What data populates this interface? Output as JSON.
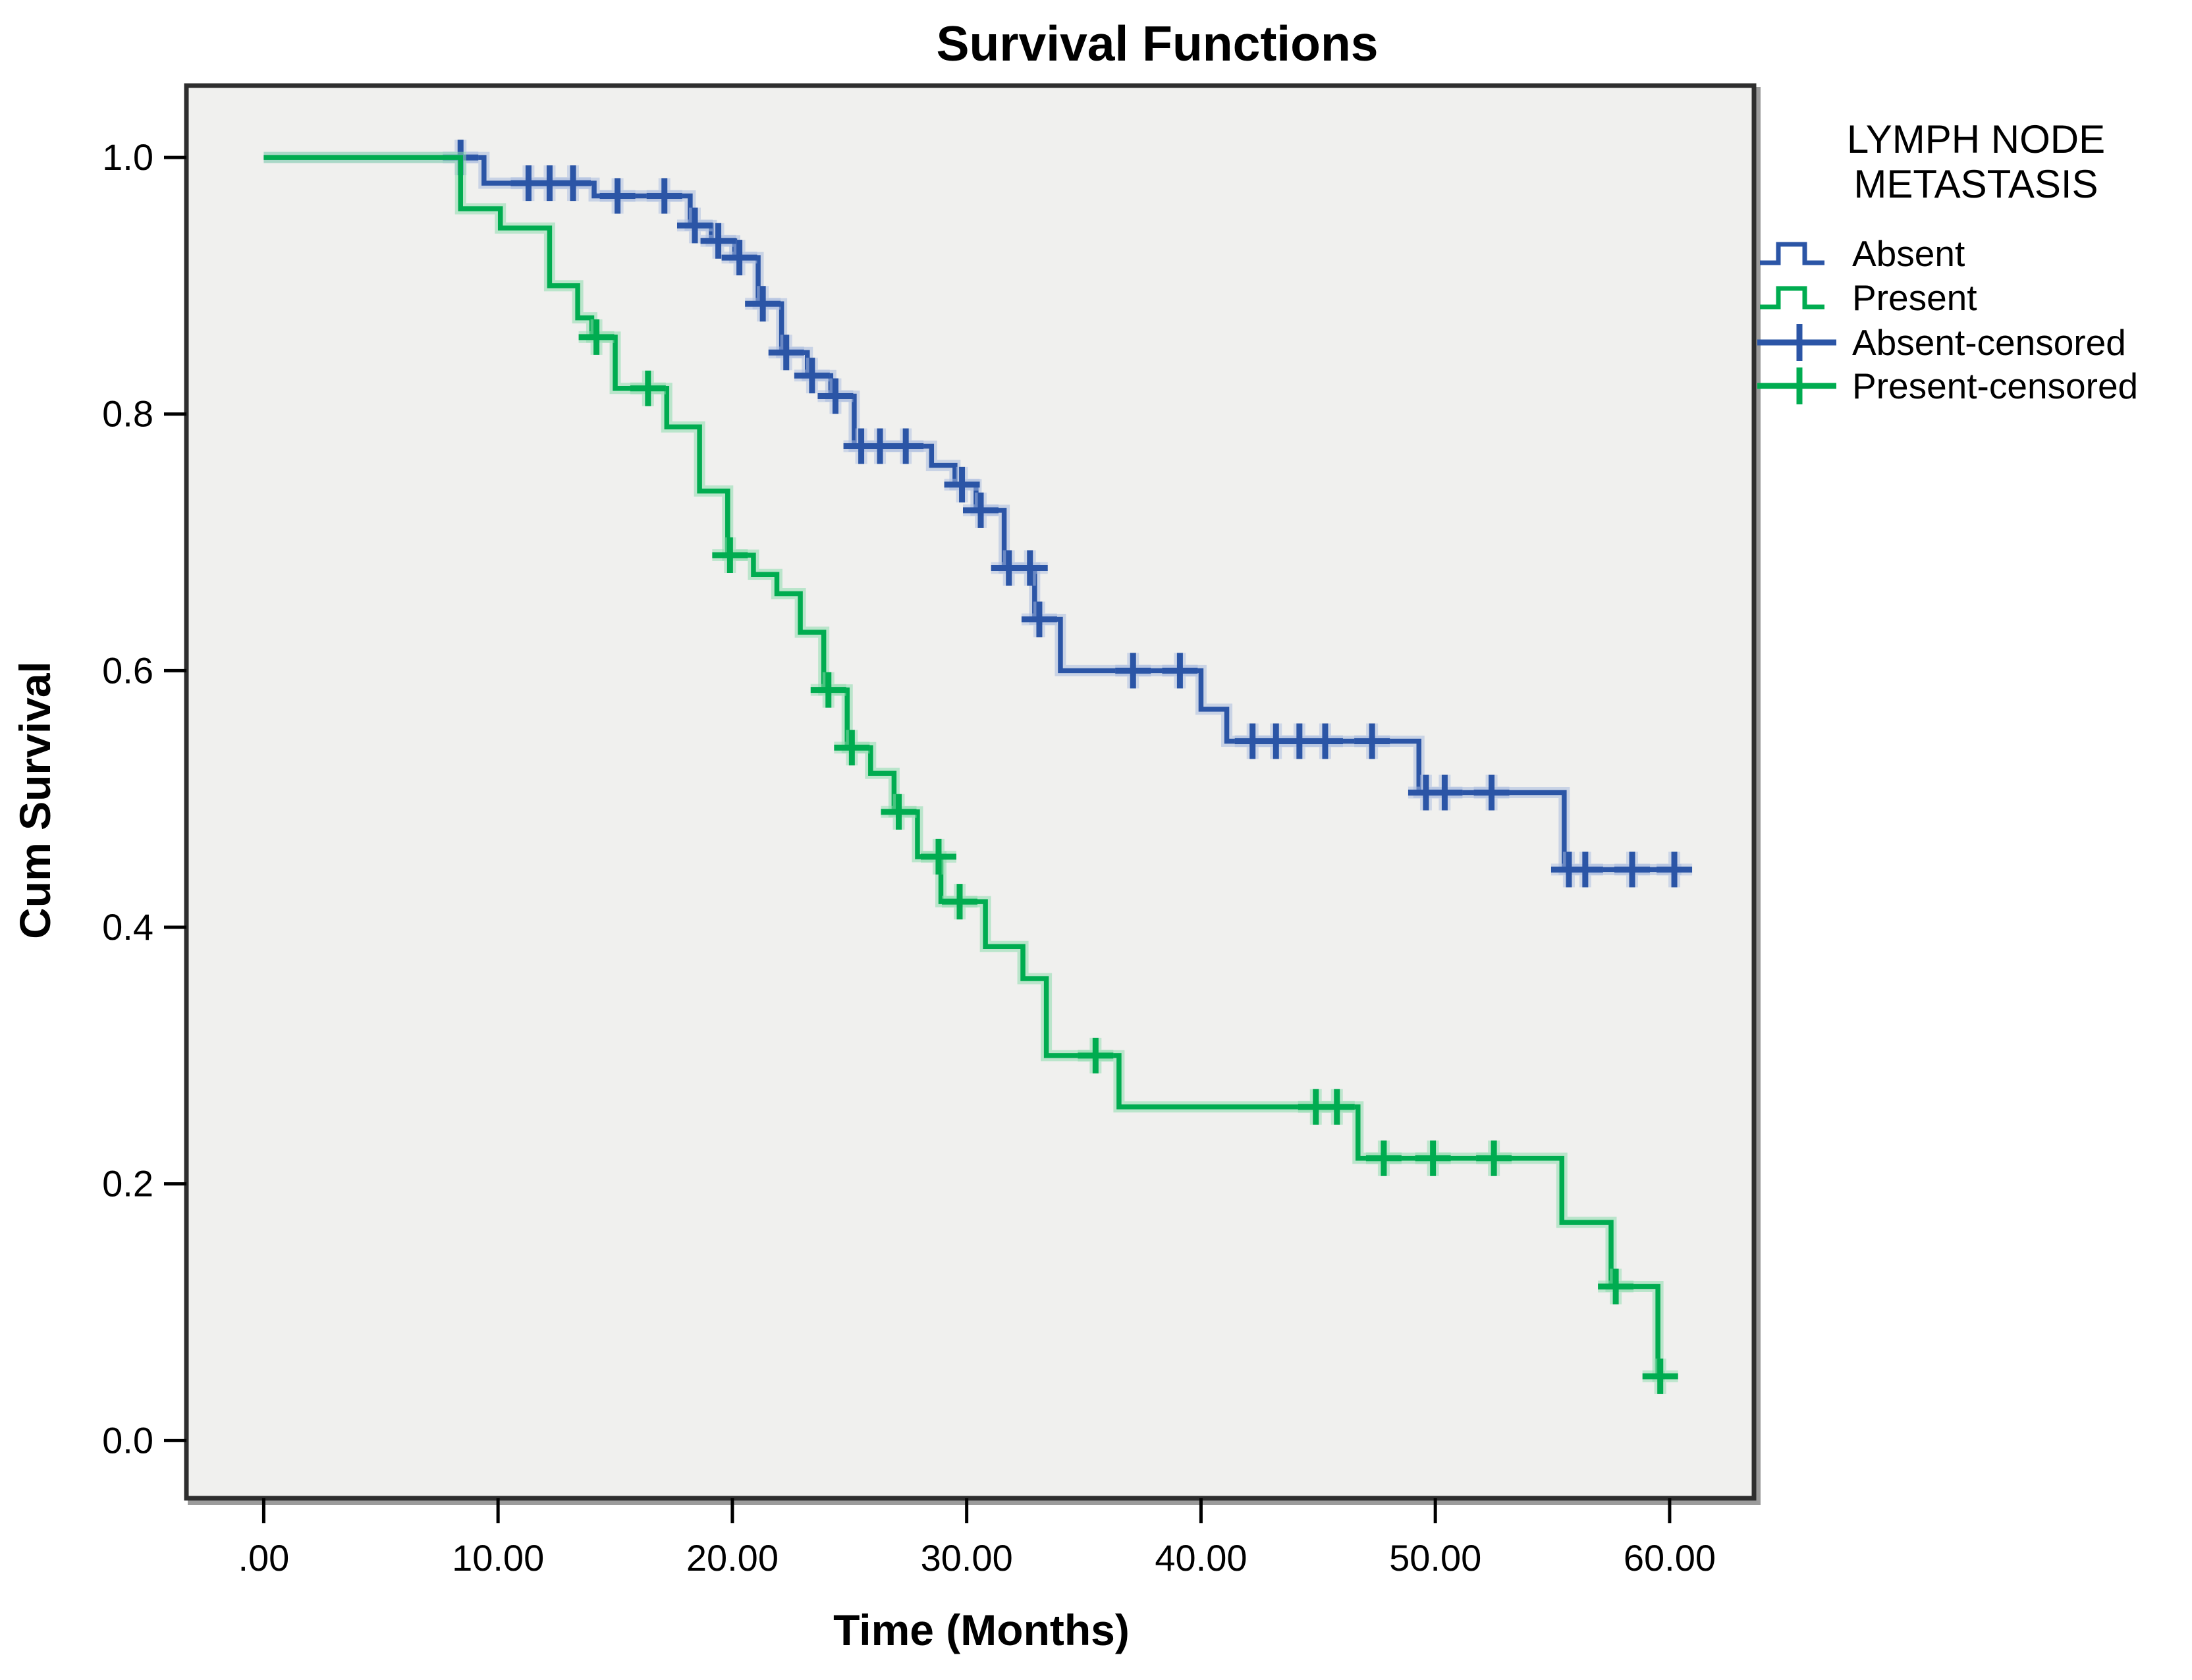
{
  "chart_data": {
    "type": "line",
    "subtype": "kaplan-meier-step",
    "title": "Survival Functions",
    "xlabel": "Time (Months)",
    "ylabel": "Cum Survival",
    "grid": false,
    "plot_bg_color": "#F0F0EE",
    "frame_color": "#2E2E2E",
    "shadow_color": "#9B9B9B",
    "xlim": [
      -3.3,
      63.6
    ],
    "ylim": [
      -0.045,
      1.056
    ],
    "x_tick_values": [
      0,
      10,
      20,
      30,
      40,
      50,
      60
    ],
    "x_tick_labels": [
      ".00",
      "10.00",
      "20.00",
      "30.00",
      "40.00",
      "50.00",
      "60.00"
    ],
    "y_tick_values": [
      1.0,
      0.8,
      0.6,
      0.4,
      0.2,
      0.0
    ],
    "y_tick_labels": [
      "1.0",
      "0.8",
      "0.6",
      "0.4",
      "0.2",
      "0.0"
    ],
    "legend": {
      "position": "right",
      "title_lines": [
        "LYMPH NODE",
        "METASTASIS"
      ],
      "entries": [
        {
          "label": "Absent",
          "glyph": "step",
          "color": "#2B55A6"
        },
        {
          "label": "Present",
          "glyph": "step",
          "color": "#00AC50"
        },
        {
          "label": "Absent-censored",
          "glyph": "plus",
          "color": "#2B55A6"
        },
        {
          "label": "Present-censored",
          "glyph": "plus",
          "color": "#00AC50"
        }
      ]
    },
    "series": [
      {
        "name": "Absent",
        "color": "#2B55A6",
        "halo_color": "#A9BBDF",
        "end_time": 60.5,
        "steps": [
          [
            0,
            1.0
          ],
          [
            9.4,
            0.98
          ],
          [
            14.1,
            0.97
          ],
          [
            18.2,
            0.947
          ],
          [
            19.1,
            0.935
          ],
          [
            20.1,
            0.922
          ],
          [
            21.1,
            0.886
          ],
          [
            22.1,
            0.848
          ],
          [
            23.2,
            0.83
          ],
          [
            24.2,
            0.814
          ],
          [
            25.2,
            0.775
          ],
          [
            28.5,
            0.76
          ],
          [
            29.5,
            0.745
          ],
          [
            30.4,
            0.725
          ],
          [
            31.6,
            0.68
          ],
          [
            32.9,
            0.64
          ],
          [
            34.0,
            0.6
          ],
          [
            40.0,
            0.57
          ],
          [
            41.1,
            0.545
          ],
          [
            49.3,
            0.505
          ],
          [
            55.5,
            0.445
          ]
        ],
        "censored": [
          [
            8.4,
            1.0
          ],
          [
            11.3,
            0.98
          ],
          [
            12.2,
            0.98
          ],
          [
            13.2,
            0.98
          ],
          [
            15.1,
            0.97
          ],
          [
            17.1,
            0.97
          ],
          [
            18.4,
            0.947
          ],
          [
            19.4,
            0.935
          ],
          [
            20.3,
            0.922
          ],
          [
            21.3,
            0.886
          ],
          [
            22.3,
            0.848
          ],
          [
            23.4,
            0.83
          ],
          [
            24.4,
            0.814
          ],
          [
            25.5,
            0.775
          ],
          [
            26.3,
            0.775
          ],
          [
            27.4,
            0.775
          ],
          [
            29.8,
            0.745
          ],
          [
            30.6,
            0.725
          ],
          [
            31.8,
            0.68
          ],
          [
            32.7,
            0.68
          ],
          [
            33.1,
            0.64
          ],
          [
            37.1,
            0.6
          ],
          [
            39.1,
            0.6
          ],
          [
            42.2,
            0.545
          ],
          [
            43.2,
            0.545
          ],
          [
            44.2,
            0.545
          ],
          [
            45.3,
            0.545
          ],
          [
            47.3,
            0.545
          ],
          [
            49.6,
            0.505
          ],
          [
            50.4,
            0.505
          ],
          [
            52.4,
            0.505
          ],
          [
            55.7,
            0.445
          ],
          [
            56.4,
            0.445
          ],
          [
            58.4,
            0.445
          ],
          [
            60.2,
            0.445
          ]
        ]
      },
      {
        "name": "Present",
        "color": "#00AC50",
        "halo_color": "#8EDCAE",
        "end_time": 59.8,
        "steps": [
          [
            0,
            1.0
          ],
          [
            8.4,
            0.96
          ],
          [
            10.1,
            0.945
          ],
          [
            12.2,
            0.9
          ],
          [
            13.4,
            0.875
          ],
          [
            14.0,
            0.86
          ],
          [
            15.0,
            0.82
          ],
          [
            17.2,
            0.79
          ],
          [
            18.6,
            0.74
          ],
          [
            19.8,
            0.69
          ],
          [
            20.9,
            0.675
          ],
          [
            21.9,
            0.66
          ],
          [
            22.9,
            0.63
          ],
          [
            23.9,
            0.585
          ],
          [
            24.9,
            0.54
          ],
          [
            25.9,
            0.52
          ],
          [
            26.9,
            0.49
          ],
          [
            27.9,
            0.455
          ],
          [
            28.9,
            0.42
          ],
          [
            30.8,
            0.385
          ],
          [
            32.4,
            0.36
          ],
          [
            33.4,
            0.3
          ],
          [
            36.5,
            0.26
          ],
          [
            46.7,
            0.22
          ],
          [
            55.4,
            0.17
          ],
          [
            57.5,
            0.12
          ],
          [
            59.5,
            0.05
          ]
        ],
        "censored": [
          [
            14.2,
            0.86
          ],
          [
            16.4,
            0.82
          ],
          [
            19.9,
            0.69
          ],
          [
            24.1,
            0.585
          ],
          [
            25.1,
            0.54
          ],
          [
            27.1,
            0.49
          ],
          [
            28.8,
            0.455
          ],
          [
            29.7,
            0.42
          ],
          [
            35.5,
            0.3
          ],
          [
            44.9,
            0.26
          ],
          [
            45.8,
            0.26
          ],
          [
            47.8,
            0.22
          ],
          [
            49.9,
            0.22
          ],
          [
            52.5,
            0.22
          ],
          [
            57.7,
            0.12
          ],
          [
            59.6,
            0.05
          ]
        ]
      }
    ]
  }
}
